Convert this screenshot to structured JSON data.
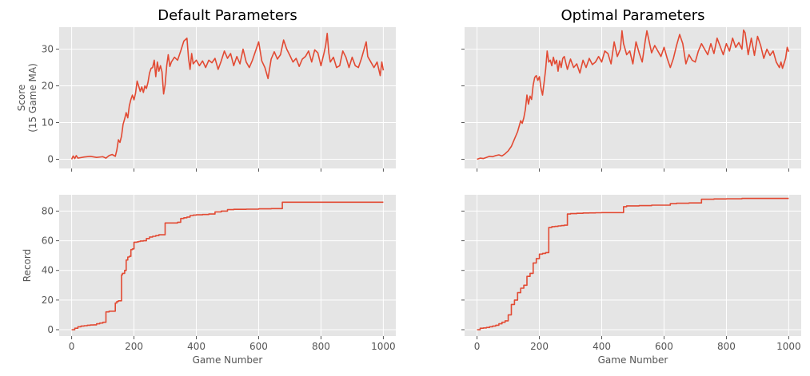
{
  "chart_data": [
    {
      "type": "line",
      "title": "Default Parameters",
      "xlabel": "",
      "ylabel": "Score\n(15 Game MA)",
      "xlim": [
        -40,
        1040
      ],
      "ylim": [
        -2.5,
        36
      ],
      "xticks": [
        0,
        200,
        400,
        600,
        800,
        1000
      ],
      "show_xticklabels": false,
      "yticks": [
        0,
        10,
        20,
        30
      ],
      "show_yticklabels": true,
      "grid": true,
      "color": "#E24A33",
      "step": false,
      "series": [
        {
          "x": [
            0,
            5,
            10,
            15,
            20,
            40,
            60,
            80,
            100,
            110,
            120,
            130,
            140,
            145,
            150,
            155,
            160,
            165,
            170,
            175,
            180,
            185,
            190,
            195,
            200,
            205,
            210,
            215,
            220,
            225,
            230,
            235,
            240,
            245,
            250,
            255,
            260,
            265,
            270,
            275,
            280,
            285,
            290,
            295,
            300,
            305,
            310,
            315,
            320,
            330,
            340,
            350,
            360,
            370,
            375,
            380,
            385,
            390,
            400,
            410,
            420,
            430,
            440,
            450,
            460,
            470,
            480,
            490,
            500,
            510,
            520,
            530,
            540,
            550,
            560,
            570,
            580,
            590,
            600,
            610,
            620,
            630,
            640,
            650,
            660,
            670,
            680,
            690,
            700,
            710,
            720,
            730,
            740,
            750,
            760,
            770,
            780,
            790,
            800,
            810,
            815,
            820,
            825,
            830,
            840,
            850,
            860,
            870,
            880,
            890,
            900,
            910,
            920,
            930,
            940,
            945,
            950,
            960,
            970,
            980,
            990,
            995,
            1000
          ],
          "y": [
            0,
            0.9,
            0.2,
            1.0,
            0.3,
            0.6,
            0.8,
            0.5,
            0.7,
            0.3,
            1.0,
            1.3,
            0.8,
            2.5,
            5.3,
            4.6,
            6.3,
            9.5,
            11.0,
            12.7,
            11.3,
            14.5,
            16.3,
            17.5,
            16.2,
            18.0,
            21.3,
            20.0,
            18.5,
            19.7,
            18.2,
            20.0,
            19.3,
            21.0,
            23.5,
            24.8,
            25.0,
            27.0,
            22.5,
            26.5,
            24.0,
            25.5,
            23.8,
            17.8,
            20.3,
            25.5,
            28.5,
            25.3,
            26.5,
            27.8,
            27.0,
            29.5,
            32.2,
            33.0,
            27.5,
            24.5,
            28.8,
            26.0,
            27.0,
            25.5,
            26.8,
            25.0,
            27.0,
            26.3,
            27.5,
            24.5,
            26.8,
            29.5,
            27.5,
            28.8,
            25.5,
            28.0,
            26.0,
            30.0,
            26.5,
            25.0,
            27.0,
            29.5,
            32.0,
            26.8,
            25.0,
            22.0,
            27.3,
            29.3,
            27.3,
            28.5,
            32.5,
            30.0,
            28.3,
            26.5,
            27.5,
            25.3,
            27.3,
            28.0,
            29.5,
            26.5,
            29.8,
            29.0,
            25.5,
            29.0,
            31.0,
            34.3,
            29.0,
            26.5,
            27.8,
            25.0,
            25.5,
            29.5,
            27.8,
            25.0,
            27.8,
            25.5,
            25.0,
            27.5,
            30.5,
            32.0,
            28.0,
            26.5,
            25.0,
            26.5,
            22.8,
            26.5,
            24.2
          ]
        }
      ]
    },
    {
      "type": "line",
      "title": "Optimal Parameters",
      "xlabel": "",
      "ylabel": "",
      "xlim": [
        -40,
        1040
      ],
      "ylim": [
        -2.5,
        36
      ],
      "xticks": [
        0,
        200,
        400,
        600,
        800,
        1000
      ],
      "show_xticklabels": false,
      "yticks": [
        0,
        10,
        20,
        30
      ],
      "show_yticklabels": false,
      "grid": true,
      "color": "#E24A33",
      "step": false,
      "series": [
        {
          "x": [
            0,
            10,
            20,
            30,
            40,
            50,
            60,
            70,
            80,
            90,
            100,
            110,
            120,
            130,
            140,
            145,
            150,
            155,
            160,
            165,
            170,
            175,
            180,
            185,
            190,
            195,
            200,
            205,
            210,
            215,
            220,
            225,
            230,
            235,
            240,
            245,
            250,
            255,
            260,
            265,
            270,
            275,
            280,
            290,
            300,
            310,
            320,
            330,
            340,
            350,
            360,
            370,
            380,
            390,
            400,
            410,
            420,
            430,
            440,
            450,
            460,
            465,
            470,
            475,
            480,
            490,
            500,
            510,
            520,
            530,
            540,
            545,
            550,
            560,
            570,
            580,
            590,
            600,
            610,
            620,
            630,
            640,
            650,
            660,
            670,
            680,
            690,
            700,
            710,
            720,
            730,
            740,
            750,
            760,
            770,
            780,
            790,
            800,
            810,
            820,
            830,
            840,
            850,
            855,
            860,
            870,
            880,
            890,
            900,
            910,
            920,
            930,
            940,
            950,
            960,
            970,
            975,
            980,
            990,
            995,
            1000
          ],
          "y": [
            0,
            0.3,
            0.2,
            0.5,
            0.8,
            0.7,
            1.0,
            1.2,
            0.9,
            1.5,
            2.3,
            3.5,
            5.5,
            7.5,
            10.5,
            9.8,
            11.3,
            13.5,
            17.5,
            15.0,
            17.2,
            16.3,
            20.2,
            22.3,
            22.8,
            21.5,
            22.5,
            19.5,
            17.5,
            20.8,
            24.5,
            29.5,
            26.5,
            27.0,
            25.5,
            27.8,
            26.0,
            27.0,
            24.0,
            26.8,
            25.0,
            27.5,
            28.0,
            24.5,
            27.3,
            25.0,
            26.0,
            23.5,
            27.0,
            25.0,
            27.5,
            25.8,
            26.5,
            28.0,
            26.5,
            29.5,
            28.8,
            26.0,
            32.0,
            28.0,
            30.0,
            35.0,
            31.5,
            30.0,
            28.5,
            29.5,
            26.0,
            32.0,
            29.0,
            26.5,
            32.5,
            35.0,
            33.0,
            29.0,
            31.0,
            29.5,
            28.0,
            30.5,
            27.5,
            25.0,
            27.5,
            31.0,
            34.0,
            31.5,
            26.0,
            28.5,
            27.0,
            26.5,
            29.5,
            31.5,
            30.0,
            28.5,
            31.5,
            28.8,
            33.0,
            30.8,
            28.5,
            31.5,
            29.5,
            33.0,
            30.5,
            31.8,
            30.0,
            35.2,
            34.5,
            28.5,
            33.0,
            28.3,
            33.5,
            31.0,
            27.5,
            30.0,
            28.3,
            29.5,
            26.5,
            25.0,
            26.5,
            24.8,
            27.5,
            30.5,
            29.3
          ]
        }
      ]
    },
    {
      "type": "line",
      "title": "",
      "xlabel": "Game Number",
      "ylabel": "Record",
      "xlim": [
        -40,
        1040
      ],
      "ylim": [
        -4.3,
        91
      ],
      "xticks": [
        0,
        200,
        400,
        600,
        800,
        1000
      ],
      "show_xticklabels": true,
      "yticks": [
        0,
        20,
        40,
        60,
        80
      ],
      "show_yticklabels": true,
      "grid": true,
      "color": "#E24A33",
      "step": true,
      "series": [
        {
          "x": [
            0,
            10,
            20,
            30,
            40,
            50,
            60,
            70,
            80,
            90,
            100,
            110,
            120,
            140,
            145,
            150,
            160,
            163,
            170,
            175,
            180,
            185,
            190,
            195,
            200,
            210,
            215,
            220,
            230,
            240,
            250,
            260,
            270,
            280,
            300,
            340,
            350,
            360,
            370,
            380,
            390,
            400,
            420,
            440,
            460,
            480,
            500,
            520,
            560,
            600,
            640,
            676,
            1000
          ],
          "y": [
            0,
            1,
            2,
            2.5,
            2.7,
            3,
            3.2,
            3.3,
            4,
            4.5,
            5,
            12,
            12.5,
            18,
            19,
            19.5,
            37,
            38,
            40,
            47,
            49,
            49.5,
            54,
            54.5,
            59,
            59.3,
            59.5,
            59.8,
            60,
            61.5,
            62.5,
            63,
            63.5,
            64,
            72,
            72.5,
            75,
            75.5,
            76,
            77,
            77.3,
            77.5,
            77.7,
            78,
            79.5,
            80,
            81,
            81.2,
            81.3,
            81.5,
            81.7,
            86,
            86
          ]
        }
      ]
    },
    {
      "type": "line",
      "title": "",
      "xlabel": "Game Number",
      "ylabel": "",
      "xlim": [
        -40,
        1040
      ],
      "ylim": [
        -4.3,
        91
      ],
      "xticks": [
        0,
        200,
        400,
        600,
        800,
        1000
      ],
      "show_xticklabels": true,
      "yticks": [
        0,
        20,
        40,
        60,
        80
      ],
      "show_yticklabels": false,
      "grid": true,
      "color": "#E24A33",
      "step": true,
      "series": [
        {
          "x": [
            0,
            10,
            20,
            30,
            40,
            50,
            60,
            70,
            80,
            90,
            100,
            110,
            120,
            130,
            140,
            150,
            160,
            170,
            180,
            190,
            200,
            210,
            220,
            230,
            240,
            250,
            260,
            270,
            280,
            290,
            300,
            320,
            340,
            360,
            380,
            400,
            420,
            440,
            470,
            480,
            520,
            560,
            600,
            620,
            640,
            680,
            720,
            760,
            800,
            850,
            1000
          ],
          "y": [
            0,
            1,
            1.2,
            1.5,
            2,
            2.5,
            3,
            4,
            5,
            6,
            10,
            17,
            20,
            25,
            28,
            30,
            36,
            38,
            45,
            48,
            51,
            51.5,
            52,
            69,
            69.5,
            69.7,
            70,
            70.2,
            70.5,
            78,
            78.3,
            78.5,
            78.7,
            78.8,
            78.9,
            79,
            79,
            79,
            83,
            83.5,
            83.7,
            84,
            84,
            85,
            85.3,
            85.5,
            88,
            88.2,
            88.3,
            88.5,
            88.5
          ]
        }
      ]
    }
  ]
}
